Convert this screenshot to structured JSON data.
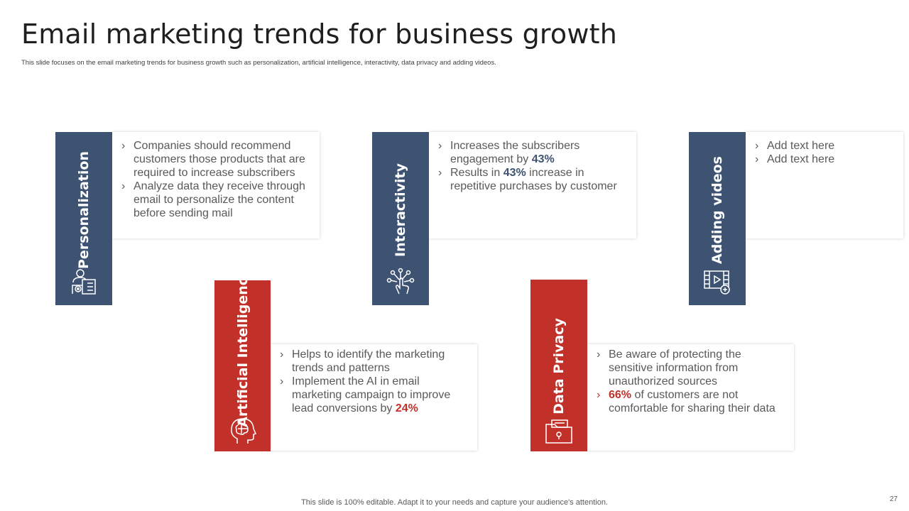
{
  "header": {
    "title": "Email marketing trends for business growth",
    "subtitle": "This slide focuses on the email  marketing  trends for business growth such as personalization, artificial intelligence, interactivity, data privacy and adding videos."
  },
  "colors": {
    "blue": "#3e5372",
    "red": "#c1312a"
  },
  "trends": {
    "personalization": {
      "label": "Personalization",
      "icon": "user-settings-icon",
      "bullets": [
        "Companies should recommend customers those products that are required to increase subscribers",
        "Analyze data they receive through email to personalize the content before sending mail"
      ]
    },
    "interactivity": {
      "label": "Interactivity",
      "icon": "touch-network-icon",
      "b1_pre": "Increases the subscribers engagement by ",
      "b1_hl": "43%",
      "b2_pre": "Results  in ",
      "b2_hl": "43%",
      "b2_post": " increase in repetitive purchases by customer"
    },
    "adding_videos": {
      "label": "Adding videos",
      "icon": "video-add-icon",
      "bullets": [
        "Add text here",
        "Add text here"
      ]
    },
    "ai": {
      "label": "Artificial Intelligence",
      "icon": "brain-head-icon",
      "b1": "Helps to identify the marketing trends and patterns",
      "b2_pre": "Implement  the AI in email marketing campaign to improve lead conversions  by ",
      "b2_hl": "24%"
    },
    "data_privacy": {
      "label": "Data Privacy",
      "icon": "secure-folder-icon",
      "b1": "Be aware of protecting the sensitive information from unauthorized  sources",
      "b2_hl": "66%",
      "b2_post": " of customers are not comfortable for sharing their data"
    }
  },
  "footer": {
    "note": "This slide is 100% editable. Adapt it to your needs and capture your audience's attention.",
    "page": "27"
  }
}
